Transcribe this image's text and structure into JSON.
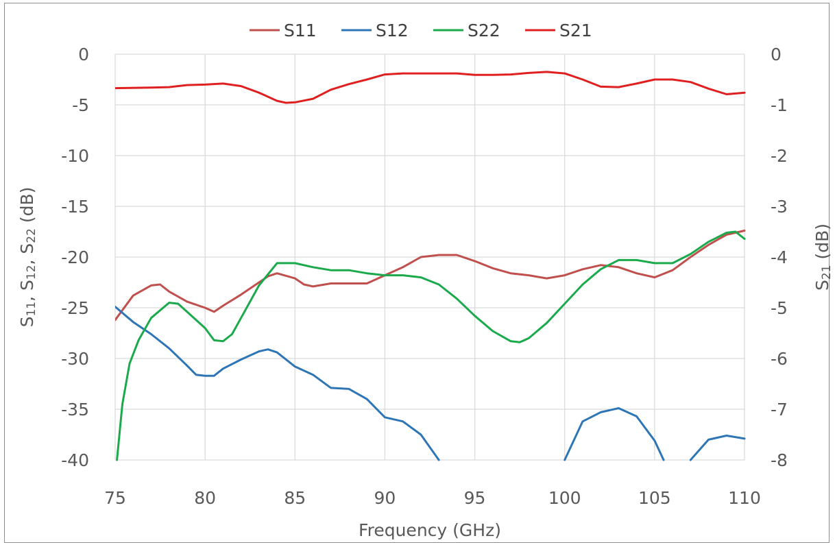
{
  "chart_data": {
    "type": "line",
    "title": "",
    "xlabel": "Frequency (GHz)",
    "ylabel_left": {
      "main": "S",
      "parts": [
        [
          "11",
          ", S"
        ],
        [
          "12",
          ", S"
        ],
        [
          "22",
          " (dB)"
        ]
      ]
    },
    "ylabel_right": {
      "main": "S",
      "sub": "21",
      "rest": " (dB)"
    },
    "xlim": [
      75,
      110
    ],
    "ylim_left": [
      -40,
      0
    ],
    "ylim_right": [
      -8,
      0
    ],
    "x_ticks": [
      75,
      80,
      85,
      90,
      95,
      100,
      105,
      110
    ],
    "y_ticks_left": [
      0,
      -5,
      -10,
      -15,
      -20,
      -25,
      -30,
      -35,
      -40
    ],
    "y_ticks_right": [
      0,
      -1,
      -2,
      -3,
      -4,
      -5,
      -6,
      -7,
      -8
    ],
    "grid": true,
    "legend_position": "top-center",
    "series": [
      {
        "name": "S11",
        "axis": "left",
        "color": "#c0504d",
        "points": [
          [
            75,
            -26.2
          ],
          [
            76,
            -23.8
          ],
          [
            77,
            -22.8
          ],
          [
            77.5,
            -22.7
          ],
          [
            78,
            -23.4
          ],
          [
            79,
            -24.4
          ],
          [
            80,
            -25.0
          ],
          [
            80.5,
            -25.4
          ],
          [
            81,
            -24.8
          ],
          [
            82,
            -23.7
          ],
          [
            83,
            -22.5
          ],
          [
            83.5,
            -21.9
          ],
          [
            84,
            -21.6
          ],
          [
            85,
            -22.1
          ],
          [
            85.5,
            -22.7
          ],
          [
            86,
            -22.9
          ],
          [
            87,
            -22.6
          ],
          [
            88,
            -22.6
          ],
          [
            89,
            -22.6
          ],
          [
            90,
            -21.8
          ],
          [
            91,
            -21.0
          ],
          [
            92,
            -20.0
          ],
          [
            93,
            -19.8
          ],
          [
            94,
            -19.8
          ],
          [
            95,
            -20.4
          ],
          [
            96,
            -21.1
          ],
          [
            97,
            -21.6
          ],
          [
            98,
            -21.8
          ],
          [
            99,
            -22.1
          ],
          [
            100,
            -21.8
          ],
          [
            101,
            -21.2
          ],
          [
            102,
            -20.8
          ],
          [
            103,
            -21.0
          ],
          [
            104,
            -21.6
          ],
          [
            105,
            -22.0
          ],
          [
            106,
            -21.3
          ],
          [
            107,
            -20.0
          ],
          [
            108,
            -18.8
          ],
          [
            109,
            -17.8
          ],
          [
            110,
            -17.4
          ]
        ]
      },
      {
        "name": "S12",
        "axis": "left",
        "color": "#2e75b6",
        "points": [
          [
            75,
            -24.9
          ],
          [
            76,
            -26.4
          ],
          [
            77,
            -27.6
          ],
          [
            78,
            -29.0
          ],
          [
            79,
            -30.7
          ],
          [
            79.5,
            -31.6
          ],
          [
            80,
            -31.7
          ],
          [
            80.5,
            -31.7
          ],
          [
            81,
            -31.0
          ],
          [
            82,
            -30.1
          ],
          [
            83,
            -29.3
          ],
          [
            83.5,
            -29.1
          ],
          [
            84,
            -29.4
          ],
          [
            85,
            -30.8
          ],
          [
            86,
            -31.6
          ],
          [
            87,
            -32.9
          ],
          [
            88,
            -33.0
          ],
          [
            89,
            -34.0
          ],
          [
            90,
            -35.8
          ],
          [
            91,
            -36.2
          ],
          [
            92,
            -37.5
          ],
          [
            93,
            -40.0
          ]
        ],
        "points_2": [
          [
            100,
            -40.0
          ],
          [
            101,
            -36.2
          ],
          [
            102,
            -35.3
          ],
          [
            103,
            -34.9
          ],
          [
            104,
            -35.7
          ],
          [
            105,
            -38.1
          ],
          [
            105.5,
            -40.0
          ]
        ],
        "points_3": [
          [
            107,
            -40.0
          ],
          [
            108,
            -38.0
          ],
          [
            109,
            -37.6
          ],
          [
            110,
            -37.9
          ]
        ]
      },
      {
        "name": "S22",
        "axis": "left",
        "color": "#1aaa4c",
        "points": [
          [
            75.1,
            -40.0
          ],
          [
            75.4,
            -34.5
          ],
          [
            75.8,
            -30.5
          ],
          [
            76.3,
            -28.2
          ],
          [
            77,
            -26.0
          ],
          [
            78,
            -24.5
          ],
          [
            78.5,
            -24.6
          ],
          [
            79,
            -25.4
          ],
          [
            80,
            -27.0
          ],
          [
            80.5,
            -28.2
          ],
          [
            81,
            -28.3
          ],
          [
            81.5,
            -27.6
          ],
          [
            82,
            -26.0
          ],
          [
            83,
            -22.8
          ],
          [
            84,
            -20.6
          ],
          [
            85,
            -20.6
          ],
          [
            86,
            -21.0
          ],
          [
            87,
            -21.3
          ],
          [
            88,
            -21.3
          ],
          [
            89,
            -21.6
          ],
          [
            90,
            -21.8
          ],
          [
            91,
            -21.8
          ],
          [
            92,
            -22.0
          ],
          [
            93,
            -22.7
          ],
          [
            94,
            -24.1
          ],
          [
            95,
            -25.8
          ],
          [
            96,
            -27.3
          ],
          [
            97,
            -28.3
          ],
          [
            97.5,
            -28.4
          ],
          [
            98,
            -28.0
          ],
          [
            99,
            -26.5
          ],
          [
            100,
            -24.6
          ],
          [
            101,
            -22.7
          ],
          [
            102,
            -21.2
          ],
          [
            103,
            -20.3
          ],
          [
            104,
            -20.3
          ],
          [
            105,
            -20.6
          ],
          [
            106,
            -20.6
          ],
          [
            107,
            -19.7
          ],
          [
            108,
            -18.5
          ],
          [
            109,
            -17.6
          ],
          [
            109.5,
            -17.5
          ],
          [
            110,
            -18.2
          ]
        ]
      },
      {
        "name": "S21",
        "axis": "right",
        "color": "#e02020",
        "points": [
          [
            75,
            -0.67
          ],
          [
            77,
            -0.66
          ],
          [
            78,
            -0.65
          ],
          [
            79,
            -0.61
          ],
          [
            80,
            -0.6
          ],
          [
            81,
            -0.58
          ],
          [
            82,
            -0.63
          ],
          [
            83,
            -0.76
          ],
          [
            84,
            -0.92
          ],
          [
            84.5,
            -0.96
          ],
          [
            85,
            -0.95
          ],
          [
            86,
            -0.88
          ],
          [
            87,
            -0.7
          ],
          [
            88,
            -0.59
          ],
          [
            89,
            -0.5
          ],
          [
            90,
            -0.4
          ],
          [
            91,
            -0.38
          ],
          [
            92,
            -0.38
          ],
          [
            93,
            -0.38
          ],
          [
            94,
            -0.38
          ],
          [
            95,
            -0.41
          ],
          [
            96,
            -0.41
          ],
          [
            97,
            -0.4
          ],
          [
            98,
            -0.37
          ],
          [
            99,
            -0.35
          ],
          [
            100,
            -0.38
          ],
          [
            101,
            -0.5
          ],
          [
            102,
            -0.64
          ],
          [
            103,
            -0.65
          ],
          [
            104,
            -0.58
          ],
          [
            105,
            -0.5
          ],
          [
            106,
            -0.5
          ],
          [
            107,
            -0.55
          ],
          [
            108,
            -0.68
          ],
          [
            109,
            -0.79
          ],
          [
            110,
            -0.76
          ]
        ]
      }
    ]
  }
}
